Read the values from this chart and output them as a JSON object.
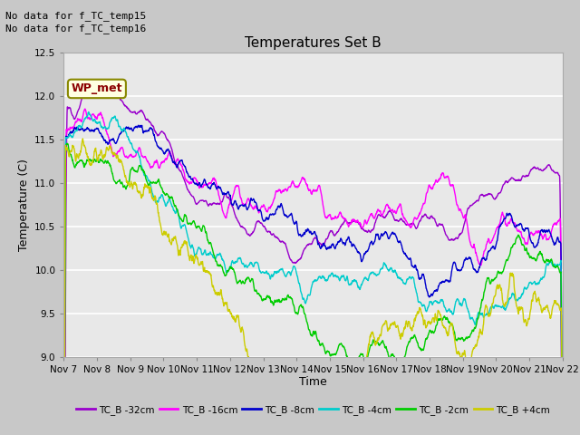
{
  "title": "Temperatures Set B",
  "xlabel": "Time",
  "ylabel": "Temperature (C)",
  "ylim": [
    9.0,
    12.5
  ],
  "text_no_data": [
    "No data for f_TC_temp15",
    "No data for f_TC_temp16"
  ],
  "wp_met_label": "WP_met",
  "x_tick_labels": [
    "Nov 7",
    "Nov 8",
    "Nov 9",
    "Nov 10",
    "Nov 11",
    "Nov 12",
    "Nov 13",
    "Nov 14",
    "Nov 15",
    "Nov 16",
    "Nov 17",
    "Nov 18",
    "Nov 19",
    "Nov 20",
    "Nov 21",
    "Nov 22"
  ],
  "series": [
    {
      "label": "TC_B -32cm",
      "color": "#9900cc"
    },
    {
      "label": "TC_B -16cm",
      "color": "#ff00ff"
    },
    {
      "label": "TC_B -8cm",
      "color": "#0000cc"
    },
    {
      "label": "TC_B -4cm",
      "color": "#00cccc"
    },
    {
      "label": "TC_B -2cm",
      "color": "#00cc00"
    },
    {
      "label": "TC_B +4cm",
      "color": "#cccc00"
    }
  ],
  "fig_bg": "#c8c8c8",
  "plot_bg": "#e8e8e8",
  "grid_color": "#ffffff",
  "yticks": [
    9.0,
    9.5,
    10.0,
    10.5,
    11.0,
    11.5,
    12.0,
    12.5
  ]
}
